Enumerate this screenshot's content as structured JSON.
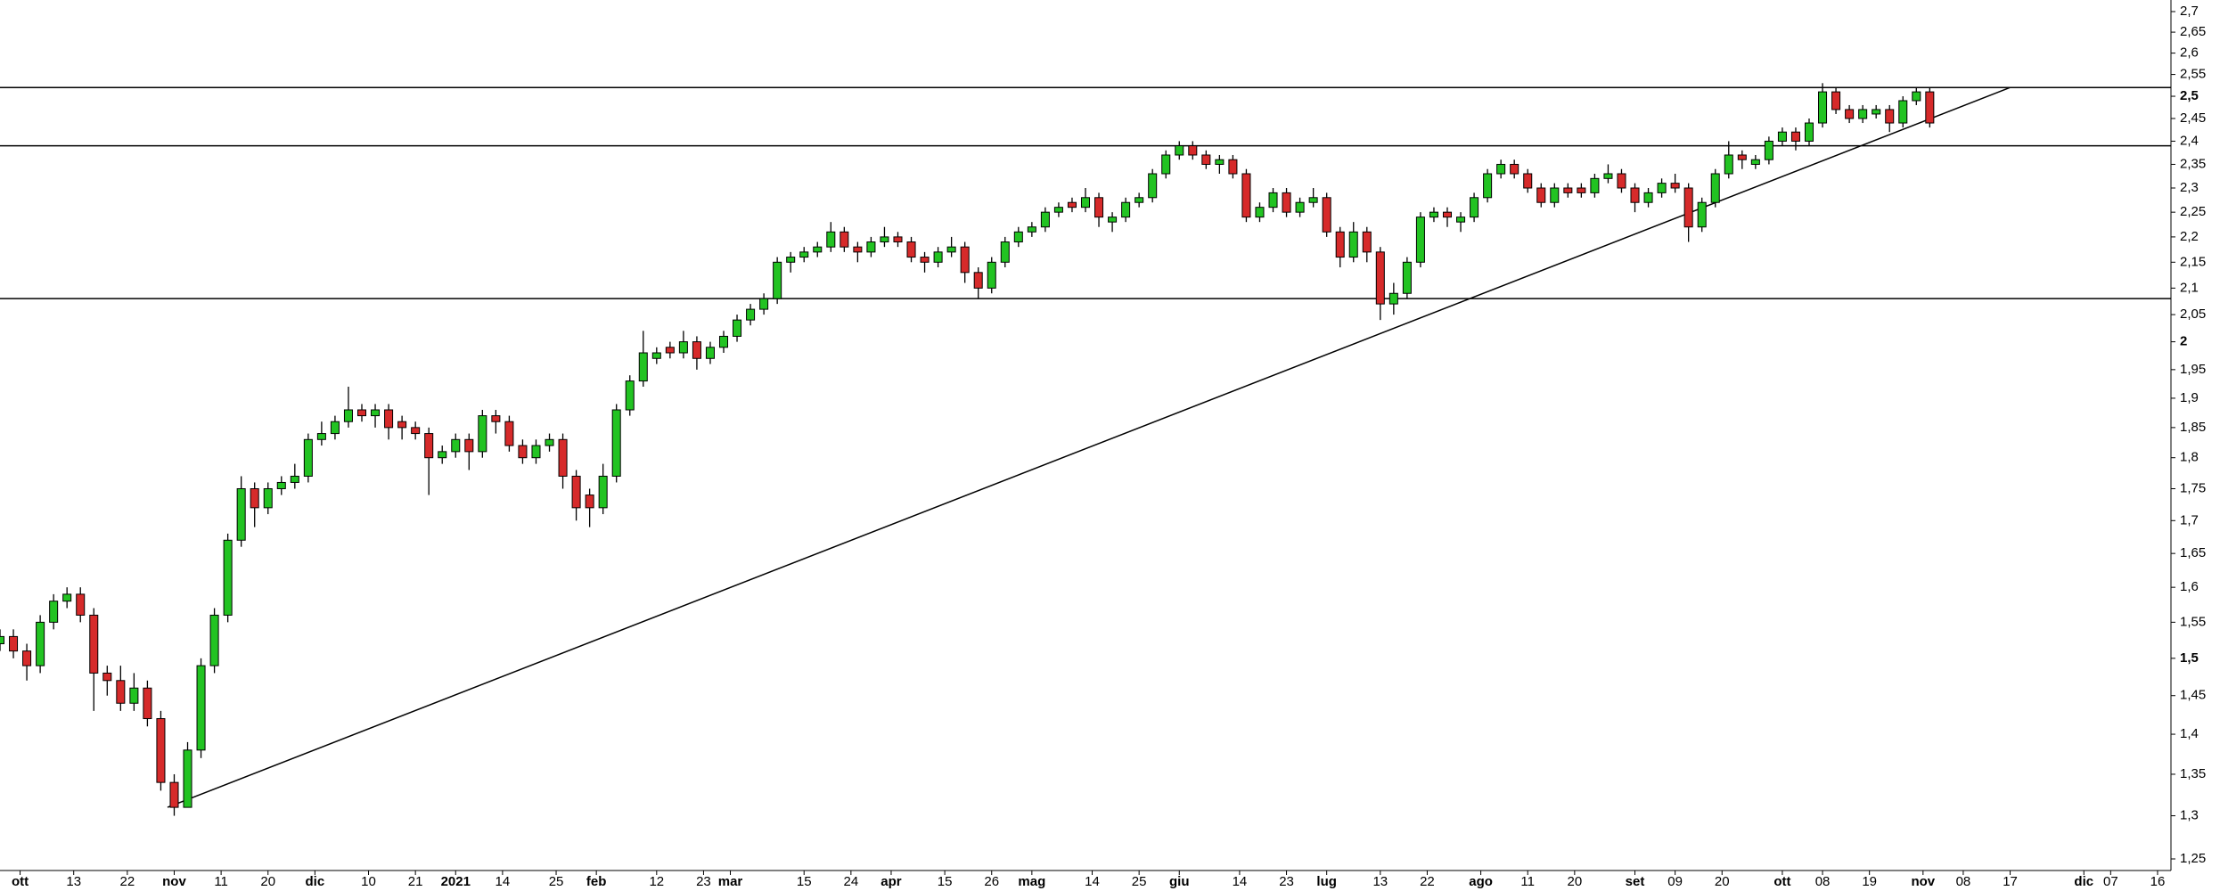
{
  "chart_data": {
    "type": "candlestick",
    "log_scale": true,
    "up_color": "#22c322",
    "down_color": "#d62a2a",
    "line_color": "#000000",
    "xlim": [
      0,
      162
    ],
    "ylim": [
      1.25,
      2.7
    ],
    "xticks": [
      {
        "value": 1.5,
        "label": "ott"
      },
      {
        "value": 5.5,
        "label": "13"
      },
      {
        "value": 9.5,
        "label": "22"
      },
      {
        "value": 13,
        "label": "nov"
      },
      {
        "value": 16.5,
        "label": "11"
      },
      {
        "value": 20,
        "label": "20"
      },
      {
        "value": 23.5,
        "label": "dic"
      },
      {
        "value": 27.5,
        "label": "10"
      },
      {
        "value": 31,
        "label": "21"
      },
      {
        "value": 34,
        "label": "2021"
      },
      {
        "value": 37.5,
        "label": "14"
      },
      {
        "value": 41.5,
        "label": "25"
      },
      {
        "value": 44.5,
        "label": "feb"
      },
      {
        "value": 49,
        "label": "12"
      },
      {
        "value": 52.5,
        "label": "23"
      },
      {
        "value": 54.5,
        "label": "mar"
      },
      {
        "value": 60,
        "label": "15"
      },
      {
        "value": 63.5,
        "label": "24"
      },
      {
        "value": 66.5,
        "label": "apr"
      },
      {
        "value": 70.5,
        "label": "15"
      },
      {
        "value": 74,
        "label": "26"
      },
      {
        "value": 77,
        "label": "mag"
      },
      {
        "value": 81.5,
        "label": "14"
      },
      {
        "value": 85,
        "label": "25"
      },
      {
        "value": 88,
        "label": "giu"
      },
      {
        "value": 92.5,
        "label": "14"
      },
      {
        "value": 96,
        "label": "23"
      },
      {
        "value": 99,
        "label": "lug"
      },
      {
        "value": 103,
        "label": "13"
      },
      {
        "value": 106.5,
        "label": "22"
      },
      {
        "value": 110.5,
        "label": "ago"
      },
      {
        "value": 114,
        "label": "11"
      },
      {
        "value": 117.5,
        "label": "20"
      },
      {
        "value": 122,
        "label": "set"
      },
      {
        "value": 125,
        "label": "09"
      },
      {
        "value": 128.5,
        "label": "20"
      },
      {
        "value": 133,
        "label": "ott"
      },
      {
        "value": 136,
        "label": "08"
      },
      {
        "value": 139.5,
        "label": "19"
      },
      {
        "value": 143.5,
        "label": "nov"
      },
      {
        "value": 146.5,
        "label": "08"
      },
      {
        "value": 150,
        "label": "17"
      },
      {
        "value": 155.5,
        "label": "dic"
      },
      {
        "value": 157.5,
        "label": "07"
      },
      {
        "value": 161,
        "label": "16"
      }
    ],
    "yticks": [
      {
        "value": 1.25,
        "label": "1,25"
      },
      {
        "value": 1.3,
        "label": "1,3"
      },
      {
        "value": 1.35,
        "label": "1,35"
      },
      {
        "value": 1.4,
        "label": "1,4"
      },
      {
        "value": 1.45,
        "label": "1,45"
      },
      {
        "value": 1.5,
        "label": "1,5"
      },
      {
        "value": 1.55,
        "label": "1,55"
      },
      {
        "value": 1.6,
        "label": "1,6"
      },
      {
        "value": 1.65,
        "label": "1,65"
      },
      {
        "value": 1.7,
        "label": "1,7"
      },
      {
        "value": 1.75,
        "label": "1,75"
      },
      {
        "value": 1.8,
        "label": "1,8"
      },
      {
        "value": 1.85,
        "label": "1,85"
      },
      {
        "value": 1.9,
        "label": "1,9"
      },
      {
        "value": 1.95,
        "label": "1,95"
      },
      2,
      {
        "value": 2.05,
        "label": "2,05"
      },
      {
        "value": 2.1,
        "label": "2,1"
      },
      {
        "value": 2.15,
        "label": "2,15"
      },
      {
        "value": 2.2,
        "label": "2,2"
      },
      {
        "value": 2.25,
        "label": "2,25"
      },
      {
        "value": 2.3,
        "label": "2,3"
      },
      {
        "value": 2.35,
        "label": "2,35"
      },
      {
        "value": 2.4,
        "label": "2,4"
      },
      {
        "value": 2.45,
        "label": "2,45"
      },
      {
        "value": 2.5,
        "label": "2,5"
      },
      {
        "value": 2.55,
        "label": "2,55"
      },
      {
        "value": 2.6,
        "label": "2,6"
      },
      {
        "value": 2.65,
        "label": "2,65"
      },
      {
        "value": 2.7,
        "label": "2,7"
      }
    ],
    "hlines": [
      2.52,
      2.39,
      2.08
    ],
    "trendlines": [
      {
        "x": [
          12.5,
          150
        ],
        "y": [
          1.31,
          2.52
        ]
      }
    ],
    "open": [
      1.52,
      1.53,
      1.51,
      1.49,
      1.55,
      1.58,
      1.59,
      1.56,
      1.48,
      1.47,
      1.44,
      1.46,
      1.42,
      1.34,
      1.31,
      1.38,
      1.49,
      1.56,
      1.67,
      1.75,
      1.72,
      1.75,
      1.76,
      1.77,
      1.83,
      1.84,
      1.86,
      1.88,
      1.87,
      1.88,
      1.86,
      1.85,
      1.84,
      1.8,
      1.81,
      1.83,
      1.81,
      1.87,
      1.86,
      1.82,
      1.8,
      1.82,
      1.83,
      1.77,
      1.74,
      1.72,
      1.77,
      1.88,
      1.93,
      1.97,
      1.99,
      1.98,
      2.0,
      1.97,
      1.99,
      2.01,
      2.04,
      2.06,
      2.08,
      2.15,
      2.16,
      2.17,
      2.18,
      2.21,
      2.18,
      2.17,
      2.19,
      2.2,
      2.19,
      2.16,
      2.15,
      2.17,
      2.18,
      2.13,
      2.1,
      2.15,
      2.19,
      2.21,
      2.22,
      2.25,
      2.27,
      2.26,
      2.28,
      2.23,
      2.24,
      2.27,
      2.28,
      2.33,
      2.37,
      2.39,
      2.37,
      2.35,
      2.36,
      2.33,
      2.24,
      2.26,
      2.29,
      2.25,
      2.27,
      2.28,
      2.21,
      2.16,
      2.21,
      2.17,
      2.07,
      2.09,
      2.15,
      2.24,
      2.25,
      2.23,
      2.24,
      2.28,
      2.33,
      2.35,
      2.33,
      2.3,
      2.27,
      2.3,
      2.3,
      2.29,
      2.32,
      2.33,
      2.3,
      2.27,
      2.29,
      2.31,
      2.3,
      2.22,
      2.27,
      2.33,
      2.37,
      2.35,
      2.36,
      2.4,
      2.42,
      2.4,
      2.44,
      2.51,
      2.47,
      2.45,
      2.46,
      2.47,
      2.44,
      2.49,
      2.51
    ],
    "high": [
      1.54,
      1.54,
      1.52,
      1.56,
      1.59,
      1.6,
      1.6,
      1.57,
      1.49,
      1.49,
      1.48,
      1.47,
      1.43,
      1.35,
      1.39,
      1.5,
      1.57,
      1.68,
      1.77,
      1.76,
      1.76,
      1.77,
      1.79,
      1.84,
      1.86,
      1.87,
      1.92,
      1.89,
      1.89,
      1.89,
      1.87,
      1.86,
      1.85,
      1.82,
      1.84,
      1.84,
      1.88,
      1.88,
      1.87,
      1.83,
      1.83,
      1.84,
      1.84,
      1.78,
      1.75,
      1.79,
      1.89,
      1.94,
      2.02,
      1.99,
      2.0,
      2.02,
      2.01,
      2.0,
      2.02,
      2.05,
      2.07,
      2.09,
      2.16,
      2.17,
      2.18,
      2.19,
      2.23,
      2.22,
      2.19,
      2.2,
      2.22,
      2.21,
      2.2,
      2.17,
      2.18,
      2.2,
      2.19,
      2.14,
      2.16,
      2.2,
      2.22,
      2.23,
      2.26,
      2.27,
      2.28,
      2.3,
      2.29,
      2.25,
      2.28,
      2.29,
      2.34,
      2.38,
      2.4,
      2.4,
      2.38,
      2.37,
      2.37,
      2.34,
      2.27,
      2.3,
      2.3,
      2.28,
      2.3,
      2.29,
      2.22,
      2.23,
      2.22,
      2.18,
      2.11,
      2.16,
      2.25,
      2.26,
      2.26,
      2.25,
      2.29,
      2.34,
      2.36,
      2.36,
      2.34,
      2.31,
      2.31,
      2.31,
      2.31,
      2.33,
      2.35,
      2.34,
      2.31,
      2.3,
      2.32,
      2.33,
      2.31,
      2.28,
      2.34,
      2.4,
      2.38,
      2.37,
      2.41,
      2.43,
      2.43,
      2.45,
      2.53,
      2.52,
      2.48,
      2.48,
      2.48,
      2.48,
      2.5,
      2.52,
      2.52
    ],
    "low": [
      1.51,
      1.5,
      1.47,
      1.48,
      1.54,
      1.57,
      1.55,
      1.43,
      1.45,
      1.43,
      1.43,
      1.41,
      1.33,
      1.3,
      1.31,
      1.37,
      1.48,
      1.55,
      1.66,
      1.69,
      1.71,
      1.74,
      1.75,
      1.76,
      1.82,
      1.83,
      1.85,
      1.86,
      1.85,
      1.83,
      1.83,
      1.83,
      1.74,
      1.79,
      1.8,
      1.78,
      1.8,
      1.84,
      1.81,
      1.79,
      1.79,
      1.81,
      1.75,
      1.7,
      1.69,
      1.71,
      1.76,
      1.87,
      1.92,
      1.96,
      1.97,
      1.97,
      1.95,
      1.96,
      1.98,
      2.0,
      2.03,
      2.05,
      2.07,
      2.13,
      2.15,
      2.16,
      2.17,
      2.17,
      2.15,
      2.16,
      2.18,
      2.18,
      2.15,
      2.13,
      2.14,
      2.16,
      2.11,
      2.08,
      2.09,
      2.14,
      2.18,
      2.2,
      2.21,
      2.24,
      2.25,
      2.25,
      2.22,
      2.21,
      2.23,
      2.26,
      2.27,
      2.32,
      2.36,
      2.36,
      2.34,
      2.33,
      2.32,
      2.23,
      2.23,
      2.25,
      2.24,
      2.24,
      2.26,
      2.2,
      2.14,
      2.15,
      2.15,
      2.04,
      2.05,
      2.08,
      2.14,
      2.23,
      2.22,
      2.21,
      2.23,
      2.27,
      2.32,
      2.32,
      2.29,
      2.26,
      2.26,
      2.28,
      2.28,
      2.28,
      2.31,
      2.29,
      2.25,
      2.26,
      2.28,
      2.29,
      2.19,
      2.21,
      2.26,
      2.32,
      2.34,
      2.34,
      2.35,
      2.39,
      2.38,
      2.39,
      2.43,
      2.46,
      2.44,
      2.44,
      2.45,
      2.42,
      2.43,
      2.48,
      2.43
    ],
    "close": [
      1.53,
      1.51,
      1.49,
      1.55,
      1.58,
      1.59,
      1.56,
      1.48,
      1.47,
      1.44,
      1.46,
      1.42,
      1.34,
      1.31,
      1.38,
      1.49,
      1.56,
      1.67,
      1.75,
      1.72,
      1.75,
      1.76,
      1.77,
      1.83,
      1.84,
      1.86,
      1.88,
      1.87,
      1.88,
      1.85,
      1.85,
      1.84,
      1.8,
      1.81,
      1.83,
      1.81,
      1.87,
      1.86,
      1.82,
      1.8,
      1.82,
      1.83,
      1.77,
      1.72,
      1.72,
      1.77,
      1.88,
      1.93,
      1.98,
      1.98,
      1.98,
      2.0,
      1.97,
      1.99,
      2.01,
      2.04,
      2.06,
      2.08,
      2.15,
      2.16,
      2.17,
      2.18,
      2.21,
      2.18,
      2.17,
      2.19,
      2.2,
      2.19,
      2.16,
      2.15,
      2.17,
      2.18,
      2.13,
      2.1,
      2.15,
      2.19,
      2.21,
      2.22,
      2.25,
      2.26,
      2.26,
      2.28,
      2.24,
      2.24,
      2.27,
      2.28,
      2.33,
      2.37,
      2.39,
      2.37,
      2.35,
      2.36,
      2.33,
      2.24,
      2.26,
      2.29,
      2.25,
      2.27,
      2.28,
      2.21,
      2.16,
      2.21,
      2.17,
      2.07,
      2.09,
      2.15,
      2.24,
      2.25,
      2.24,
      2.24,
      2.28,
      2.33,
      2.35,
      2.33,
      2.3,
      2.27,
      2.3,
      2.29,
      2.29,
      2.32,
      2.33,
      2.3,
      2.27,
      2.29,
      2.31,
      2.3,
      2.22,
      2.27,
      2.33,
      2.37,
      2.36,
      2.36,
      2.4,
      2.42,
      2.4,
      2.44,
      2.51,
      2.47,
      2.45,
      2.47,
      2.47,
      2.44,
      2.49,
      2.51,
      2.44
    ]
  }
}
